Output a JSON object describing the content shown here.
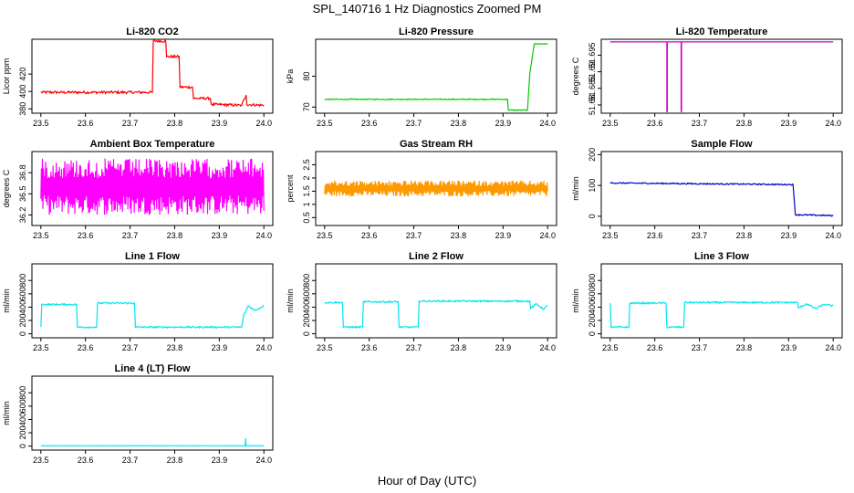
{
  "figure": {
    "title": "SPL_140716  1 Hz Diagnostics Zoomed PM",
    "xlabel": "Hour of Day (UTC)"
  },
  "chart_data": [
    {
      "type": "line",
      "title": "Li-820 CO2",
      "ylabel": "Licor ppm",
      "color": "#ff0000",
      "xlim": [
        23.48,
        24.02
      ],
      "ylim": [
        375,
        460
      ],
      "yticks": [
        380,
        400,
        420
      ],
      "xticks": [
        23.5,
        23.6,
        23.7,
        23.8,
        23.9,
        24.0
      ],
      "noise": 1.5,
      "points": [
        [
          23.5,
          399
        ],
        [
          23.75,
          399
        ],
        [
          23.752,
          458
        ],
        [
          23.78,
          458
        ],
        [
          23.782,
          440
        ],
        [
          23.81,
          440
        ],
        [
          23.812,
          405
        ],
        [
          23.84,
          405
        ],
        [
          23.842,
          392
        ],
        [
          23.88,
          392
        ],
        [
          23.882,
          385
        ],
        [
          23.9,
          385
        ],
        [
          23.95,
          384
        ],
        [
          23.96,
          396
        ],
        [
          23.962,
          385
        ],
        [
          24.0,
          384
        ]
      ]
    },
    {
      "type": "line",
      "title": "Li-820 Pressure",
      "ylabel": "kPa",
      "color": "#00cc00",
      "xlim": [
        23.48,
        24.02
      ],
      "ylim": [
        68,
        92
      ],
      "yticks": [
        70,
        80
      ],
      "xticks": [
        23.5,
        23.6,
        23.7,
        23.8,
        23.9,
        24.0
      ],
      "noise": 0.15,
      "points": [
        [
          23.5,
          72.5
        ],
        [
          23.91,
          72.5
        ],
        [
          23.912,
          69
        ],
        [
          23.955,
          69
        ],
        [
          23.96,
          81
        ],
        [
          23.97,
          90.5
        ],
        [
          24.0,
          90.5
        ]
      ]
    },
    {
      "type": "line",
      "title": "Li-820 Temperature",
      "ylabel": "degrees C",
      "color": "#cc00cc",
      "xlim": [
        23.48,
        24.02
      ],
      "ylim": [
        51.6775,
        51.6998
      ],
      "yticks": [
        51.68,
        51.685,
        51.69,
        51.695
      ],
      "xticks": [
        23.5,
        23.6,
        23.7,
        23.8,
        23.9,
        24.0
      ],
      "noise": 0,
      "points": [
        [
          23.5,
          51.699
        ],
        [
          23.627,
          51.699
        ],
        [
          23.627,
          51.678
        ],
        [
          23.628,
          51.678
        ],
        [
          23.628,
          51.699
        ],
        [
          23.659,
          51.699
        ],
        [
          23.659,
          51.678
        ],
        [
          23.66,
          51.678
        ],
        [
          23.66,
          51.699
        ],
        [
          24.0,
          51.699
        ]
      ]
    },
    {
      "type": "line",
      "title": "Ambient Box Temperature",
      "ylabel": "degrees C",
      "color": "#ff00ff",
      "xlim": [
        23.48,
        24.02
      ],
      "ylim": [
        36.05,
        37.1
      ],
      "yticks": [
        36.2,
        36.5,
        36.8
      ],
      "xticks": [
        23.5,
        23.6,
        23.7,
        23.8,
        23.9,
        24.0
      ],
      "noise": 0,
      "band": [
        36.2,
        37.0
      ],
      "points": [
        [
          23.5,
          36.6
        ],
        [
          24.0,
          36.6
        ]
      ]
    },
    {
      "type": "line",
      "title": "Gas Stream RH",
      "ylabel": "percent",
      "color": "#ff9900",
      "xlim": [
        23.48,
        24.02
      ],
      "ylim": [
        0.2,
        3.0
      ],
      "yticks": [
        0.5,
        1.0,
        1.5,
        2.0,
        2.5
      ],
      "xticks": [
        23.5,
        23.6,
        23.7,
        23.8,
        23.9,
        24.0
      ],
      "noise": 0,
      "band": [
        1.3,
        1.9
      ],
      "points": [
        [
          23.5,
          1.6
        ],
        [
          24.0,
          1.6
        ]
      ]
    },
    {
      "type": "line",
      "title": "Sample Flow",
      "ylabel": "ml/min",
      "color": "#0000cc",
      "xlim": [
        23.48,
        24.02
      ],
      "ylim": [
        -30,
        210
      ],
      "yticks": [
        0,
        100,
        200
      ],
      "xticks": [
        23.5,
        23.6,
        23.7,
        23.8,
        23.9,
        24.0
      ],
      "noise": 2,
      "points": [
        [
          23.5,
          108
        ],
        [
          23.9,
          103
        ],
        [
          23.91,
          103
        ],
        [
          23.915,
          5
        ],
        [
          24.0,
          2
        ]
      ]
    },
    {
      "type": "line",
      "title": "Line 1 Flow",
      "ylabel": "ml/min",
      "color": "#00e5ee",
      "xlim": [
        23.48,
        24.02
      ],
      "ylim": [
        -60,
        1050
      ],
      "yticks": [
        0,
        200,
        400,
        600,
        800
      ],
      "xticks": [
        23.5,
        23.6,
        23.7,
        23.8,
        23.9,
        24.0
      ],
      "noise": 12,
      "points": [
        [
          23.5,
          100
        ],
        [
          23.502,
          440
        ],
        [
          23.58,
          440
        ],
        [
          23.582,
          100
        ],
        [
          23.625,
          100
        ],
        [
          23.627,
          460
        ],
        [
          23.71,
          460
        ],
        [
          23.712,
          100
        ],
        [
          23.95,
          100
        ],
        [
          23.955,
          280
        ],
        [
          23.965,
          420
        ],
        [
          23.98,
          350
        ],
        [
          24.0,
          420
        ]
      ]
    },
    {
      "type": "line",
      "title": "Line 2 Flow",
      "ylabel": "ml/min",
      "color": "#00e5ee",
      "xlim": [
        23.48,
        24.02
      ],
      "ylim": [
        -60,
        1050
      ],
      "yticks": [
        0,
        200,
        400,
        600,
        800
      ],
      "xticks": [
        23.5,
        23.6,
        23.7,
        23.8,
        23.9,
        24.0
      ],
      "noise": 12,
      "points": [
        [
          23.5,
          470
        ],
        [
          23.54,
          470
        ],
        [
          23.542,
          100
        ],
        [
          23.585,
          100
        ],
        [
          23.587,
          480
        ],
        [
          23.665,
          480
        ],
        [
          23.667,
          100
        ],
        [
          23.71,
          100
        ],
        [
          23.712,
          490
        ],
        [
          23.96,
          490
        ],
        [
          23.962,
          380
        ],
        [
          23.975,
          450
        ],
        [
          23.99,
          370
        ],
        [
          24.0,
          420
        ]
      ]
    },
    {
      "type": "line",
      "title": "Line 3 Flow",
      "ylabel": "ml/min",
      "color": "#00e5ee",
      "xlim": [
        23.48,
        24.02
      ],
      "ylim": [
        -60,
        1050
      ],
      "yticks": [
        0,
        200,
        400,
        600,
        800
      ],
      "xticks": [
        23.5,
        23.6,
        23.7,
        23.8,
        23.9,
        24.0
      ],
      "noise": 12,
      "points": [
        [
          23.5,
          460
        ],
        [
          23.502,
          100
        ],
        [
          23.542,
          100
        ],
        [
          23.544,
          460
        ],
        [
          23.625,
          460
        ],
        [
          23.627,
          100
        ],
        [
          23.665,
          100
        ],
        [
          23.667,
          470
        ],
        [
          23.92,
          470
        ],
        [
          23.922,
          390
        ],
        [
          23.94,
          450
        ],
        [
          23.96,
          380
        ],
        [
          23.98,
          440
        ],
        [
          24.0,
          420
        ]
      ]
    },
    {
      "type": "line",
      "title": "Line 4 (LT) Flow",
      "ylabel": "ml/min",
      "color": "#00e5ee",
      "xlim": [
        23.48,
        24.02
      ],
      "ylim": [
        -60,
        1050
      ],
      "yticks": [
        0,
        200,
        400,
        600,
        800
      ],
      "xticks": [
        23.5,
        23.6,
        23.7,
        23.8,
        23.9,
        24.0
      ],
      "noise": 2,
      "points": [
        [
          23.5,
          5
        ],
        [
          23.958,
          5
        ],
        [
          23.959,
          120
        ],
        [
          23.96,
          5
        ],
        [
          24.0,
          5
        ]
      ]
    }
  ]
}
